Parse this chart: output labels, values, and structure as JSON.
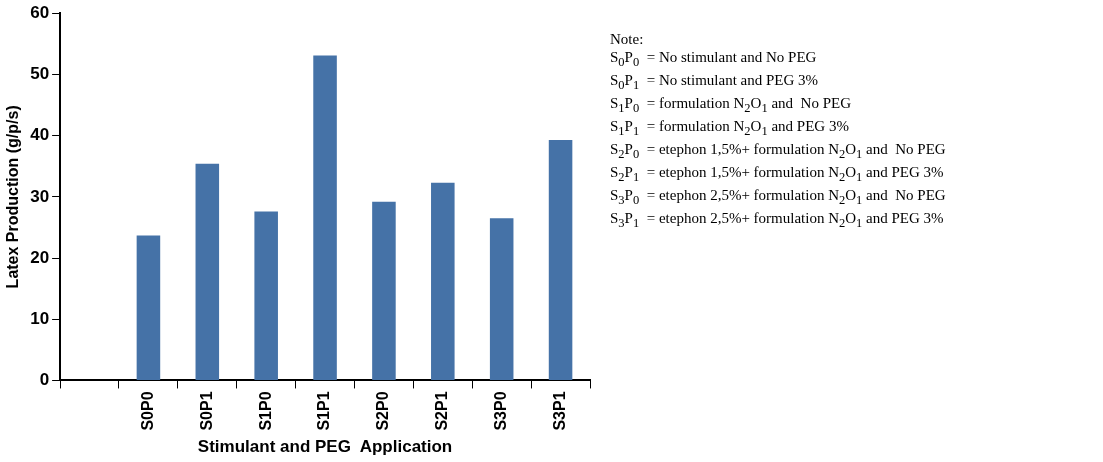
{
  "chart_data": {
    "type": "bar",
    "xlabel": "Stimulant and PEG  Application",
    "ylabel": "Latex Production (g/p/s)",
    "categories": [
      null,
      "S0P0",
      "S0P1",
      "S1P0",
      "S1P1",
      "S2P0",
      "S2P1",
      "S3P0",
      "S3P1"
    ],
    "values": [
      null,
      23.7,
      35.4,
      27.6,
      53.1,
      29.2,
      32.3,
      26.5,
      39.3
    ],
    "color": "#4572a7",
    "ylim": [
      0,
      60
    ],
    "yticks": [
      0,
      10,
      20,
      30,
      40,
      50,
      60
    ],
    "grid": false,
    "legend": false,
    "annotations": [
      "Note:",
      "S$_{0}$P$_{0}$  = No stimulant and No PEG",
      "S$_{0}$P$_{1}$  = No stimulant and PEG 3%",
      "S$_{1}$P$_{0}$  = formulation N$_{2}$O$_{1}$ and  No PEG",
      "S$_{1}$P$_{1}$  = formulation N$_{2}$O$_{1}$ and PEG 3%",
      "S$_{2}$P$_{0}$  = etephon 1,5%+ formulation N$_{2}$O$_{1}$ and  No PEG",
      "S$_{2}$P$_{1}$  = etephon 1,5%+ formulation N$_{2}$O$_{1}$ and PEG 3%",
      "S$_{3}$P$_{0}$  = etephon 2,5%+ formulation N$_{2}$O$_{1}$ and  No PEG",
      "S$_{3}$P$_{1}$  = etephon 2,5%+ formulation N$_{2}$O$_{1}$ and PEG 3%"
    ]
  }
}
